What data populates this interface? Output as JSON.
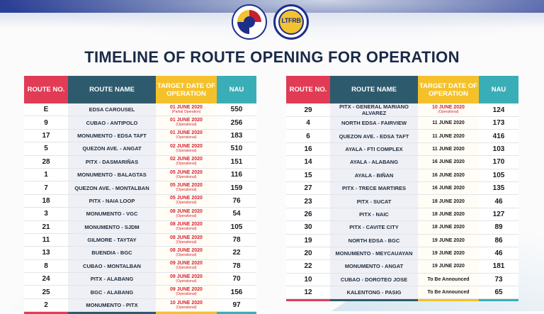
{
  "title": "TIMELINE OF ROUTE OPENING FOR OPERATION",
  "logos": {
    "left": "DOTr seal",
    "right": "LTFRB"
  },
  "ltfrb_text": "LTFRB",
  "headers": {
    "route_no": "ROUTE NO.",
    "route_name": "ROUTE NAME",
    "target_date": "TARGET DATE OF OPERATION",
    "nau": "NAU"
  },
  "colors": {
    "red": "#e23b55",
    "teal_dark": "#2e5a6e",
    "yellow": "#f5c12b",
    "teal": "#3aaeb7",
    "date_red": "#d6242f"
  },
  "left_table": [
    {
      "no": "E",
      "name": "EDSA CAROUSEL",
      "date": "01 JUNE 2020",
      "sub": "(Partial Operation)",
      "nau": "550",
      "red": true
    },
    {
      "no": "9",
      "name": "CUBAO - ANTIPOLO",
      "date": "01 JUNE 2020",
      "sub": "(Operational)",
      "nau": "256",
      "red": true
    },
    {
      "no": "17",
      "name": "MONUMENTO - EDSA TAFT",
      "date": "01 JUNE 2020",
      "sub": "(Operational)",
      "nau": "183",
      "red": true
    },
    {
      "no": "5",
      "name": "QUEZON AVE. - ANGAT",
      "date": "02 JUNE 2020",
      "sub": "(Operational)",
      "nau": "510",
      "red": true
    },
    {
      "no": "28",
      "name": "PITX - DASMARIÑAS",
      "date": "02 JUNE 2020",
      "sub": "(Operational)",
      "nau": "151",
      "red": true
    },
    {
      "no": "1",
      "name": "MONUMENTO - BALAGTAS",
      "date": "05 JUNE 2020",
      "sub": "(Operational)",
      "nau": "116",
      "red": true
    },
    {
      "no": "7",
      "name": "QUEZON AVE. - MONTALBAN",
      "date": "05 JUNE 2020",
      "sub": "(Operational)",
      "nau": "159",
      "red": true
    },
    {
      "no": "18",
      "name": "PITX - NAIA LOOP",
      "date": "05 JUNE 2020",
      "sub": "(Operational)",
      "nau": "76",
      "red": true
    },
    {
      "no": "3",
      "name": "MONUMENTO - VGC",
      "date": "08 JUNE 2020",
      "sub": "(Operational)",
      "nau": "54",
      "red": true
    },
    {
      "no": "21",
      "name": "MONUMENTO - SJDM",
      "date": "08 JUNE 2020",
      "sub": "(Operational)",
      "nau": "105",
      "red": true
    },
    {
      "no": "11",
      "name": "GILMORE - TAYTAY",
      "date": "08 JUNE 2020",
      "sub": "(Operational)",
      "nau": "78",
      "red": true
    },
    {
      "no": "13",
      "name": "BUENDIA - BGC",
      "date": "08 JUNE 2020",
      "sub": "(Operational)",
      "nau": "22",
      "red": true
    },
    {
      "no": "8",
      "name": "CUBAO - MONTALBAN",
      "date": "09 JUNE 2020",
      "sub": "(Operational)",
      "nau": "78",
      "red": true
    },
    {
      "no": "24",
      "name": "PITX - ALABANG",
      "date": "09 JUNE 2020",
      "sub": "(Operational)",
      "nau": "70",
      "red": true
    },
    {
      "no": "25",
      "name": "BGC - ALABANG",
      "date": "09 JUNE 2020",
      "sub": "(Operational)",
      "nau": "156",
      "red": true
    },
    {
      "no": "2",
      "name": "MONUMENTO - PITX",
      "date": "10 JUNE 2020",
      "sub": "(Operational)",
      "nau": "97",
      "red": true
    }
  ],
  "right_table": [
    {
      "no": "29",
      "name": "PITX - GENERAL MARIANO ALVAREZ",
      "date": "10 JUNE 2020",
      "sub": "(Operational)",
      "nau": "124",
      "red": true
    },
    {
      "no": "4",
      "name": "NORTH EDSA - FAIRVIEW",
      "date": "11 JUNE 2020",
      "sub": "",
      "nau": "173",
      "red": false
    },
    {
      "no": "6",
      "name": "QUEZON AVE. - EDSA TAFT",
      "date": "11 JUNE 2020",
      "sub": "",
      "nau": "416",
      "red": false
    },
    {
      "no": "16",
      "name": "AYALA - FTI COMPLEX",
      "date": "11 JUNE 2020",
      "sub": "",
      "nau": "103",
      "red": false
    },
    {
      "no": "14",
      "name": "AYALA - ALABANG",
      "date": "16 JUNE 2020",
      "sub": "",
      "nau": "170",
      "red": false
    },
    {
      "no": "15",
      "name": "AYALA - BIÑAN",
      "date": "16 JUNE 2020",
      "sub": "",
      "nau": "105",
      "red": false
    },
    {
      "no": "27",
      "name": "PITX - TRECE MARTIRES",
      "date": "16 JUNE 2020",
      "sub": "",
      "nau": "135",
      "red": false
    },
    {
      "no": "23",
      "name": "PITX - SUCAT",
      "date": "18 JUNE 2020",
      "sub": "",
      "nau": "46",
      "red": false
    },
    {
      "no": "26",
      "name": "PITX - NAIC",
      "date": "18 JUNE 2020",
      "sub": "",
      "nau": "127",
      "red": false
    },
    {
      "no": "30",
      "name": "PITX - CAVITE CITY",
      "date": "18 JUNE 2020",
      "sub": "",
      "nau": "89",
      "red": false
    },
    {
      "no": "19",
      "name": "NORTH EDSA - BGC",
      "date": "19 JUNE 2020",
      "sub": "",
      "nau": "86",
      "red": false
    },
    {
      "no": "20",
      "name": "MONUMENTO - MEYCAUAYAN",
      "date": "19 JUNE 2020",
      "sub": "",
      "nau": "46",
      "red": false
    },
    {
      "no": "22",
      "name": "MONUMENTO - ANGAT",
      "date": "19 JUNE 2020",
      "sub": "",
      "nau": "181",
      "red": false
    },
    {
      "no": "10",
      "name": "CUBAO - DOROTEO JOSE",
      "date": "To Be Announced",
      "sub": "",
      "nau": "73",
      "red": false
    },
    {
      "no": "12",
      "name": "KALENTONG - PASIG",
      "date": "To Be Announced",
      "sub": "",
      "nau": "65",
      "red": false
    }
  ]
}
